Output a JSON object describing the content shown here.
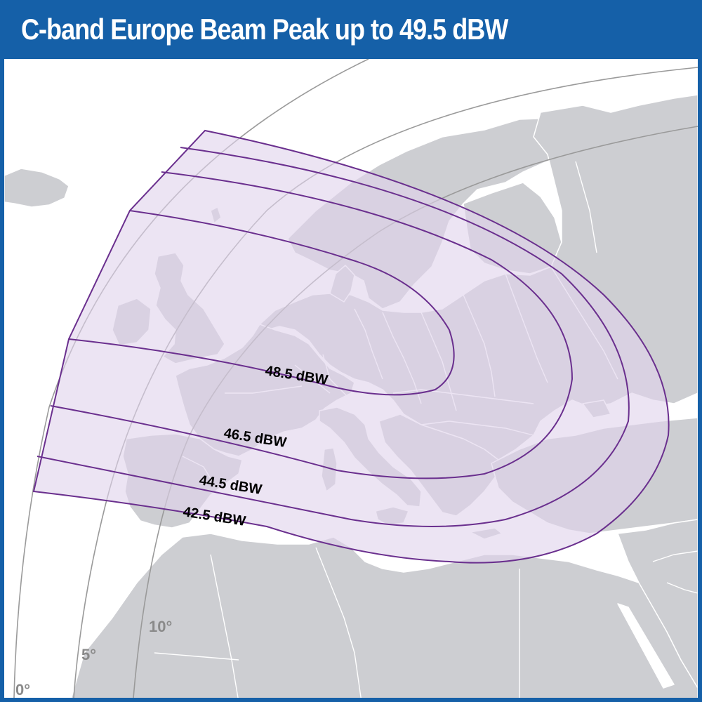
{
  "title": "C-band Europe Beam Peak up to 49.5 dBW",
  "contours": [
    {
      "level": 48.5,
      "label": "48.5 dBW"
    },
    {
      "level": 46.5,
      "label": "46.5 dBW"
    },
    {
      "level": 44.5,
      "label": "44.5 dBW"
    },
    {
      "level": 42.5,
      "label": "42.5 dBW"
    }
  ],
  "elevation_lines": [
    {
      "label": "0°"
    },
    {
      "label": "5°"
    },
    {
      "label": "10°"
    }
  ],
  "colors": {
    "header": "#1560a8",
    "land": "#cdced2",
    "border": "#ffffff",
    "beam_fill": "#e8e0f0",
    "contour_line": "#6a2f8e",
    "elevation_line": "#9a9a9a"
  }
}
